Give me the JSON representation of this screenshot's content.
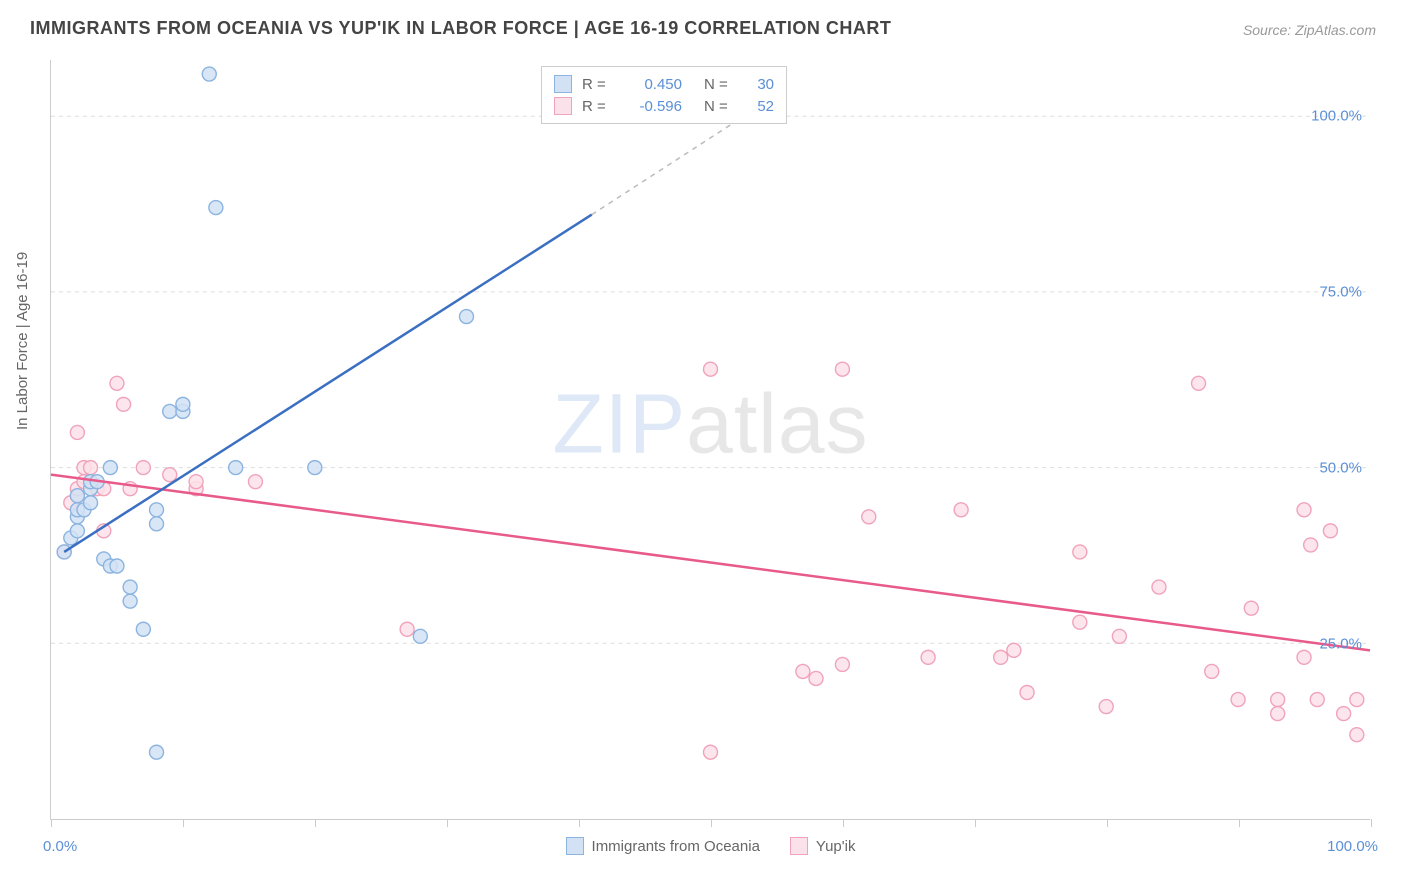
{
  "title": "IMMIGRANTS FROM OCEANIA VS YUP'IK IN LABOR FORCE | AGE 16-19 CORRELATION CHART",
  "source": "Source: ZipAtlas.com",
  "y_axis_label": "In Labor Force | Age 16-19",
  "watermark_part1": "ZIP",
  "watermark_part2": "atlas",
  "chart": {
    "type": "scatter",
    "xlim": [
      0,
      100
    ],
    "ylim": [
      0,
      108
    ],
    "x_ticks": [
      0,
      10,
      20,
      30,
      40,
      50,
      60,
      70,
      80,
      90,
      100
    ],
    "x_tick_labels": {
      "0": "0.0%",
      "100": "100.0%"
    },
    "y_ticks": [
      25,
      50,
      75,
      100
    ],
    "y_tick_labels": [
      "25.0%",
      "50.0%",
      "75.0%",
      "100.0%"
    ],
    "background_color": "#ffffff",
    "grid_color": "#dddddd",
    "axis_color": "#cccccc",
    "tick_label_color": "#5b8fd6",
    "series": [
      {
        "name": "Immigrants from Oceania",
        "marker_fill": "#d2e2f4",
        "marker_stroke": "#8bb4e0",
        "line_color": "#3a6fc2",
        "line_width": 2.5,
        "marker_radius": 7,
        "r_value": "0.450",
        "n_value": "30",
        "trend": {
          "x1": 1,
          "y1": 38,
          "x2": 41,
          "y2": 86,
          "x2_dash": 55,
          "y2_dash": 103
        },
        "points": [
          [
            1,
            38
          ],
          [
            1.5,
            40
          ],
          [
            2,
            41
          ],
          [
            2,
            43
          ],
          [
            2,
            44
          ],
          [
            2.5,
            44
          ],
          [
            2,
            46
          ],
          [
            3,
            47
          ],
          [
            3,
            48
          ],
          [
            3.5,
            48
          ],
          [
            4,
            37
          ],
          [
            4.5,
            36
          ],
          [
            5,
            36
          ],
          [
            6,
            31
          ],
          [
            6,
            33
          ],
          [
            7,
            27
          ],
          [
            8,
            42
          ],
          [
            8,
            44
          ],
          [
            9,
            58
          ],
          [
            10,
            58
          ],
          [
            10,
            59
          ],
          [
            12,
            106
          ],
          [
            12.5,
            87
          ],
          [
            14,
            50
          ],
          [
            28,
            26
          ],
          [
            31.5,
            71.5
          ],
          [
            20,
            50
          ],
          [
            4.5,
            50
          ],
          [
            8,
            9.5
          ],
          [
            3,
            45
          ]
        ]
      },
      {
        "name": "Yup'ik",
        "marker_fill": "#fbe1e9",
        "marker_stroke": "#f0a3bb",
        "line_color": "#e85a8a",
        "line_width": 2.5,
        "marker_radius": 7,
        "r_value": "-0.596",
        "n_value": "52",
        "trend": {
          "x1": 0,
          "y1": 49,
          "x2": 100,
          "y2": 24
        },
        "points": [
          [
            1,
            38
          ],
          [
            1.5,
            45
          ],
          [
            2,
            46
          ],
          [
            2,
            47
          ],
          [
            2.5,
            48
          ],
          [
            2.5,
            50
          ],
          [
            3,
            50
          ],
          [
            3,
            48
          ],
          [
            3.5,
            47
          ],
          [
            4,
            47
          ],
          [
            4,
            41
          ],
          [
            5,
            62
          ],
          [
            5.5,
            59
          ],
          [
            6,
            47
          ],
          [
            7,
            50
          ],
          [
            9,
            49
          ],
          [
            11,
            47
          ],
          [
            11,
            48
          ],
          [
            15.5,
            48
          ],
          [
            2,
            55
          ],
          [
            27,
            27
          ],
          [
            50,
            64
          ],
          [
            50,
            9.5
          ],
          [
            57,
            21
          ],
          [
            58,
            20
          ],
          [
            60,
            64
          ],
          [
            60,
            22
          ],
          [
            62,
            43
          ],
          [
            66.5,
            23
          ],
          [
            69,
            44
          ],
          [
            72,
            23
          ],
          [
            73,
            24
          ],
          [
            74,
            18
          ],
          [
            78,
            28
          ],
          [
            78,
            38
          ],
          [
            80,
            16
          ],
          [
            81,
            26
          ],
          [
            84,
            33
          ],
          [
            87,
            62
          ],
          [
            88,
            21
          ],
          [
            90,
            17
          ],
          [
            91,
            30
          ],
          [
            93,
            17
          ],
          [
            93,
            15
          ],
          [
            95,
            44
          ],
          [
            95,
            23
          ],
          [
            96,
            17
          ],
          [
            95.5,
            39
          ],
          [
            97,
            41
          ],
          [
            98,
            15
          ],
          [
            99,
            12
          ],
          [
            99,
            17
          ]
        ]
      }
    ]
  },
  "legend_top": {
    "r_label": "R  =",
    "n_label": "N  ="
  },
  "legend_bottom": {
    "series1_label": "Immigrants from Oceania",
    "series2_label": "Yup'ik"
  }
}
